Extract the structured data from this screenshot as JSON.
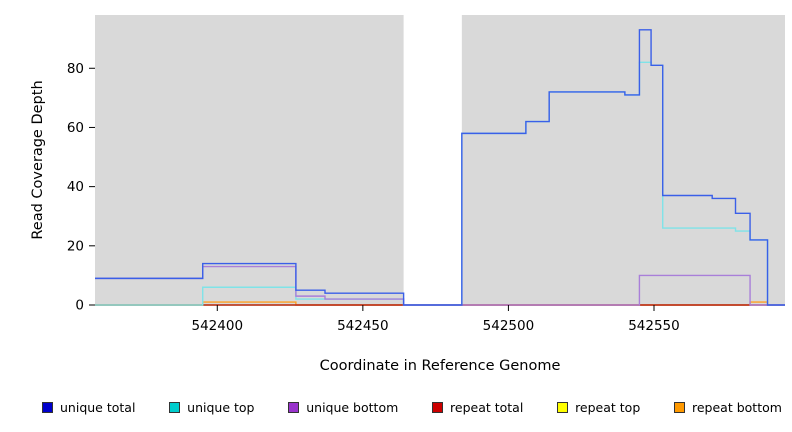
{
  "chart_data": {
    "type": "line",
    "style": "step",
    "title": "",
    "xlabel": "Coordinate in Reference Genome",
    "ylabel": "Read Coverage Depth",
    "xlim": [
      542358,
      542595
    ],
    "ylim": [
      0,
      98
    ],
    "x_ticks": [
      542400,
      542450,
      542500,
      542550
    ],
    "y_ticks": [
      0,
      20,
      40,
      60,
      80
    ],
    "plot_bg": "#d9d9d9",
    "gap_band": {
      "from": 542464,
      "to": 542484,
      "color": "#ffffff"
    },
    "z_order": [
      4,
      5,
      3,
      1,
      2,
      0
    ],
    "series": [
      {
        "name": "unique total",
        "line_color": "#3a5fe8",
        "swatch_color": "#0000cc",
        "points": [
          [
            542358,
            9
          ],
          [
            542395,
            14
          ],
          [
            542427,
            5
          ],
          [
            542437,
            4
          ],
          [
            542464,
            0
          ],
          [
            542484,
            58
          ],
          [
            542506,
            62
          ],
          [
            542514,
            72
          ],
          [
            542540,
            71
          ],
          [
            542545,
            93
          ],
          [
            542549,
            81
          ],
          [
            542553,
            37
          ],
          [
            542570,
            36
          ],
          [
            542578,
            31
          ],
          [
            542583,
            22
          ],
          [
            542589,
            0
          ]
        ]
      },
      {
        "name": "unique top",
        "line_color": "#7fe3e8",
        "swatch_color": "#00cccc",
        "points": [
          [
            542358,
            0
          ],
          [
            542395,
            6
          ],
          [
            542427,
            2
          ],
          [
            542464,
            0
          ],
          [
            542484,
            58
          ],
          [
            542506,
            62
          ],
          [
            542514,
            72
          ],
          [
            542540,
            71
          ],
          [
            542545,
            82
          ],
          [
            542549,
            81
          ],
          [
            542553,
            26
          ],
          [
            542578,
            25
          ],
          [
            542583,
            22
          ],
          [
            542589,
            0
          ]
        ]
      },
      {
        "name": "unique bottom",
        "line_color": "#a97fd9",
        "swatch_color": "#9933cc",
        "points": [
          [
            542358,
            9
          ],
          [
            542395,
            13
          ],
          [
            542427,
            3
          ],
          [
            542437,
            2
          ],
          [
            542464,
            0
          ],
          [
            542545,
            10
          ],
          [
            542583,
            0
          ]
        ]
      },
      {
        "name": "repeat total",
        "line_color": "#b22222",
        "swatch_color": "#cc0000",
        "points": [
          [
            542358,
            0
          ]
        ]
      },
      {
        "name": "repeat top",
        "line_color": "#f5f53c",
        "swatch_color": "#ffff00",
        "points": [
          [
            542358,
            0
          ]
        ]
      },
      {
        "name": "repeat bottom",
        "line_color": "#ffa023",
        "swatch_color": "#ff9900",
        "points": [
          [
            542358,
            0
          ],
          [
            542395,
            1
          ],
          [
            542427,
            0
          ],
          [
            542583,
            1
          ],
          [
            542589,
            0
          ]
        ]
      }
    ]
  }
}
